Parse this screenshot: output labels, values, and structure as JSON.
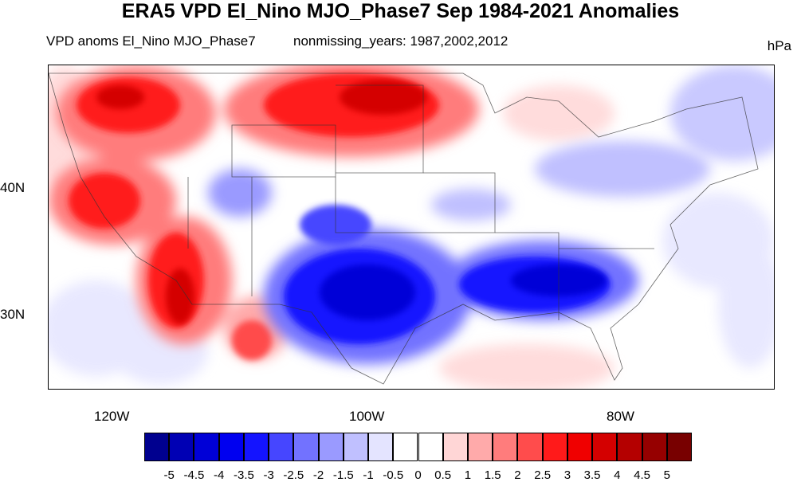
{
  "title": "ERA5 VPD El_Nino MJO_Phase7 Sep 1984-2021 Anomalies",
  "subtitle_left": "VPD anoms El_Nino MJO_Phase7",
  "subtitle_center": "nonmissing_years: 1987,2002,2012",
  "units": "hPa",
  "lat_ticks": [
    "40N",
    "30N"
  ],
  "lon_ticks": [
    "120W",
    "100W",
    "80W"
  ],
  "colorbar": {
    "labels": [
      "-5",
      "-4.5",
      "-4",
      "-3.5",
      "-3",
      "-2.5",
      "-2",
      "-1.5",
      "-1",
      "-0.5",
      "0",
      "0.5",
      "1",
      "1.5",
      "2",
      "2.5",
      "3",
      "3.5",
      "4",
      "4.5",
      "5"
    ],
    "colors": [
      "#00008f",
      "#0000b4",
      "#0000d7",
      "#0000f0",
      "#1414ff",
      "#4646ff",
      "#7272ff",
      "#9a9aff",
      "#c0c0ff",
      "#e4e4ff",
      "#ffffff",
      "#ffffff",
      "#ffd6d6",
      "#ffaaaa",
      "#ff7c7c",
      "#ff4c4c",
      "#ff1a1a",
      "#f00000",
      "#d40000",
      "#b40000",
      "#960000",
      "#780000"
    ]
  }
}
